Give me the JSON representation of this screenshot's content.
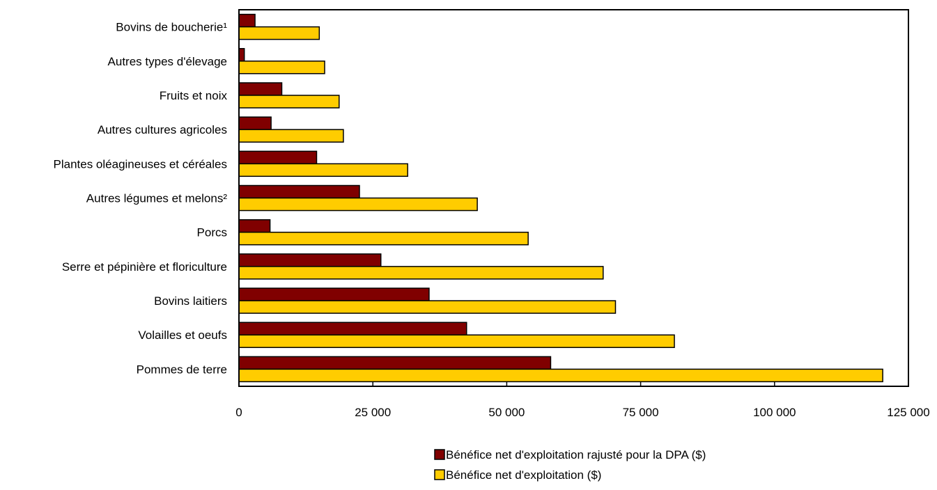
{
  "chart_data": {
    "type": "bar",
    "orientation": "horizontal",
    "categories": [
      "Bovins de boucherie¹",
      "Autres types d'élevage",
      "Fruits et noix",
      "Autres cultures agricoles",
      "Plantes oléagineuses et céréales",
      "Autres légumes et melons²",
      "Porcs",
      "Serre et pépinière et floriculture",
      "Bovins laitiers",
      "Volailles et oeufs",
      "Pommes de terre"
    ],
    "series": [
      {
        "name": "Bénéfice net d'exploitation rajusté pour la DPA ($)",
        "color": "#800000",
        "values": [
          3000,
          1000,
          8000,
          6000,
          14500,
          22500,
          5800,
          26500,
          35500,
          42500,
          58200
        ]
      },
      {
        "name": "Bénéfice net d'exploitation ($)",
        "color": "#FFCC00",
        "values": [
          15000,
          16000,
          18700,
          19500,
          31500,
          44500,
          54000,
          68000,
          70300,
          81300,
          120200
        ]
      }
    ],
    "xlim": [
      0,
      125000
    ],
    "x_ticks": [
      0,
      25000,
      50000,
      75000,
      100000,
      125000
    ],
    "x_tick_labels": [
      "0",
      "25 000",
      "50 000",
      "75 000",
      "100 000",
      "125 000"
    ],
    "grid": false,
    "legend_position": "bottom-right",
    "title": "",
    "xlabel": "",
    "ylabel": ""
  }
}
